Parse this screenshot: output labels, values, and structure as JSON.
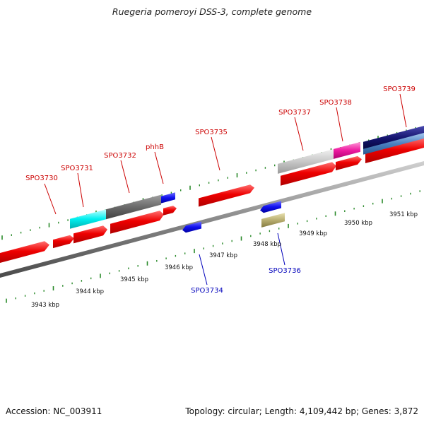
{
  "title": "Ruegeria pomeroyi DSS-3, complete genome",
  "footer": {
    "accession": "Accession: NC_003911",
    "summary": "Topology: circular; Length: 4,109,442 bp; Genes: 3,872"
  },
  "colors": {
    "forward_label": "#cc0000",
    "reverse_label": "#0000bb",
    "tick": "#2a8a2a",
    "backbone": "#888888"
  },
  "scale_labels": [
    "3943 kbp",
    "3944 kbp",
    "3945 kbp",
    "3946 kbp",
    "3947 kbp",
    "3948 kbp",
    "3949 kbp",
    "3950 kbp",
    "3951 kbp"
  ],
  "gene_labels": [
    {
      "text": "SPO3730",
      "strand": "forward"
    },
    {
      "text": "SPO3731",
      "strand": "forward"
    },
    {
      "text": "SPO3732",
      "strand": "forward"
    },
    {
      "text": "phhB",
      "strand": "forward"
    },
    {
      "text": "SPO3735",
      "strand": "forward"
    },
    {
      "text": "SPO3737",
      "strand": "forward"
    },
    {
      "text": "SPO3738",
      "strand": "forward"
    },
    {
      "text": "SPO3739",
      "strand": "forward"
    },
    {
      "text": "SPO3734",
      "strand": "reverse"
    },
    {
      "text": "SPO3736",
      "strand": "reverse"
    }
  ]
}
